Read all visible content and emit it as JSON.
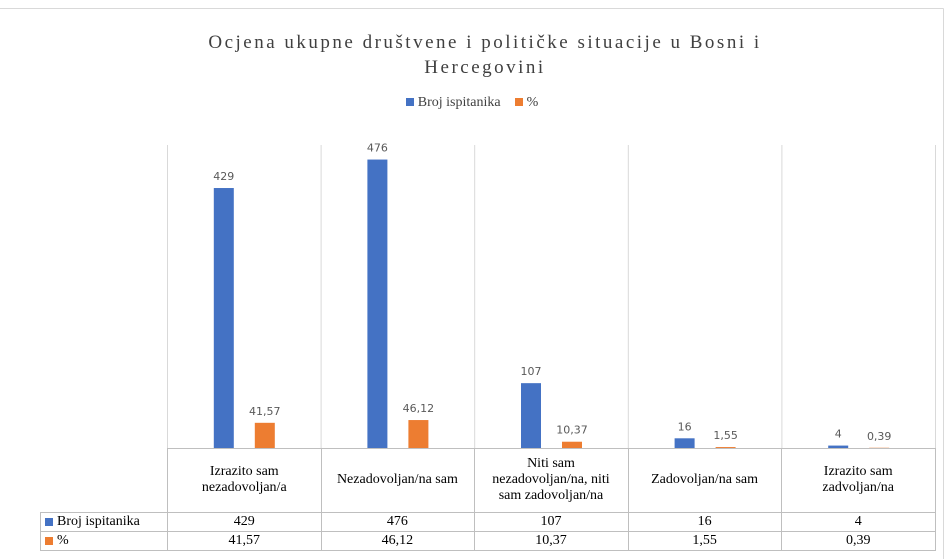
{
  "chart_data": {
    "type": "bar",
    "title": "Ocjena ukupne društvene i političke situacije u Bosni i Hercegovini",
    "categories": [
      "Izrazito sam nezadovoljan/a",
      "Nezadovoljan/na sam",
      "Niti sam nezadovoljan/na, niti sam zadovoljan/na",
      "Zadovoljan/na sam",
      "Izrazito sam zadvoljan/na"
    ],
    "series": [
      {
        "name": "Broj ispitanika",
        "color": "#4472c4",
        "values": [
          429,
          476,
          107,
          16,
          4
        ]
      },
      {
        "name": "%",
        "color": "#ed7d31",
        "values": [
          41.57,
          46.12,
          10.37,
          1.55,
          0.39
        ],
        "value_labels": [
          "41,57",
          "46,12",
          "10,37",
          "1,55",
          "0,39"
        ]
      }
    ],
    "ylim": [
      0,
      500
    ],
    "legend": "top"
  }
}
